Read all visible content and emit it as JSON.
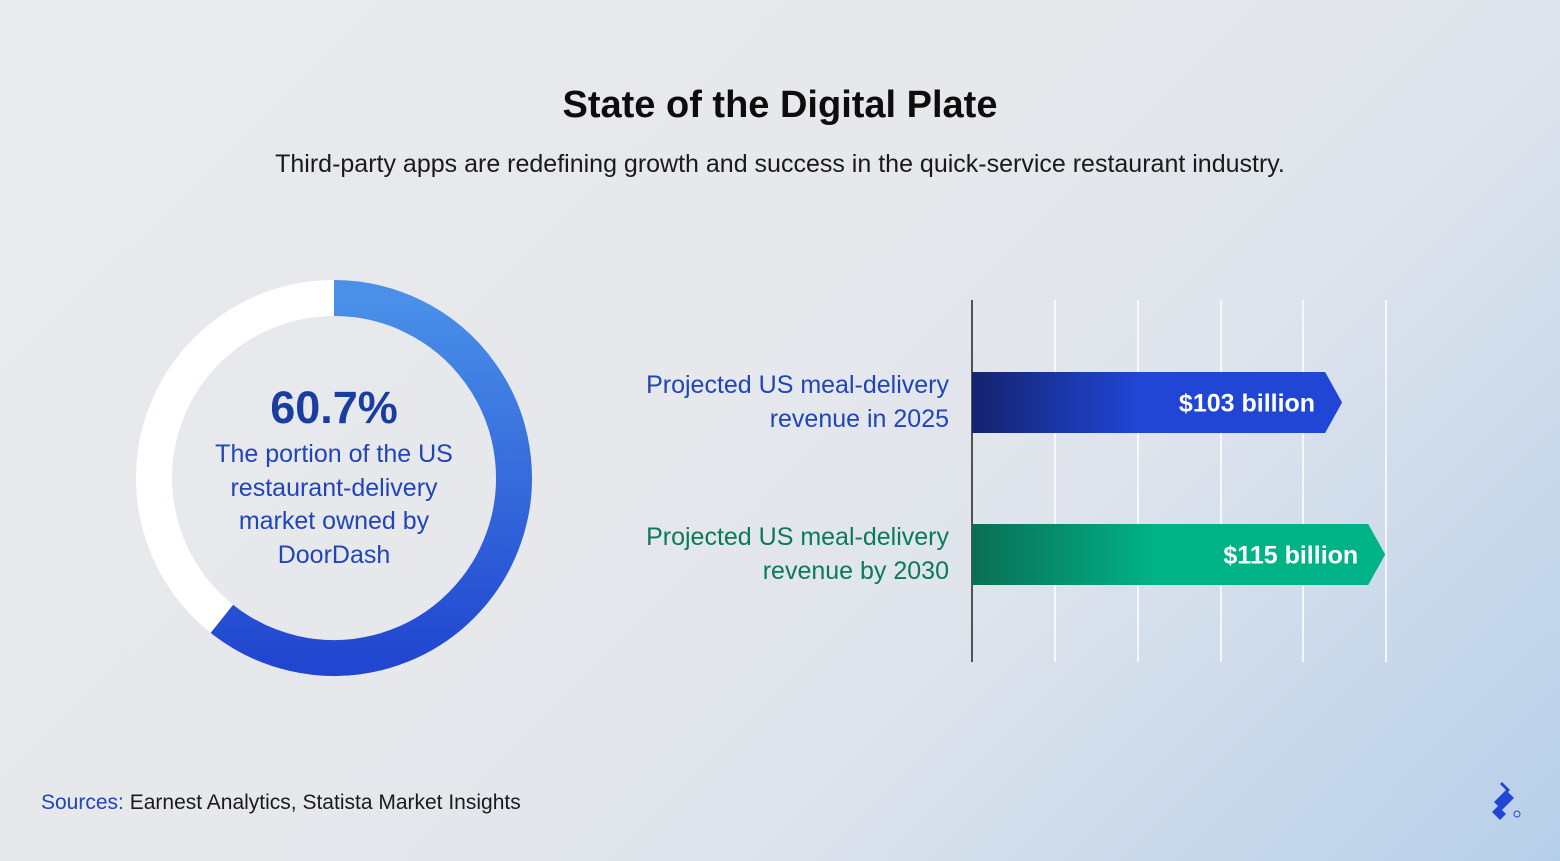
{
  "title": "State of the Digital Plate",
  "subtitle": "Third-party apps are redefining growth and success in the quick-service restaurant industry.",
  "colors": {
    "donut_track": "#ffffff",
    "donut_arc_start": "#4a90e8",
    "donut_arc_end": "#2147d0",
    "bar1_start": "#14236e",
    "bar1_end": "#2146d6",
    "bar2_start": "#0a6e54",
    "bar2_end": "#00b386",
    "label_blue": "#1f45b8",
    "label_green": "#0a7a57"
  },
  "chart_data": [
    {
      "type": "pie",
      "value": 60.7,
      "value_label": "60.7%",
      "description": "The portion of the US restaurant-delivery market owned by DoorDash"
    },
    {
      "type": "bar",
      "orientation": "horizontal",
      "categories": [
        "Projected US meal-delivery revenue in 2025",
        "Projected US meal-delivery revenue by 2030"
      ],
      "values": [
        103,
        115
      ],
      "value_labels": [
        "$103 billion",
        "$115 billion"
      ],
      "grid": true
    }
  ],
  "sources": {
    "prefix": "Sources:",
    "text": "Earnest Analytics, Statista Market Insights"
  },
  "logo_icon": "toptal-logo-icon"
}
